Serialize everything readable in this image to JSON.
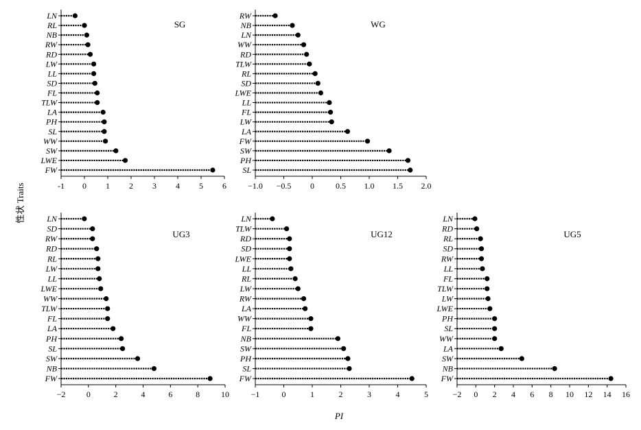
{
  "figure": {
    "ylabel": "性状 Traits",
    "xlabel": "PI"
  },
  "chart_data": [
    {
      "type": "lollipop",
      "title": "SG",
      "xlim": [
        -1,
        6
      ],
      "xticks": [
        -1,
        0,
        1,
        2,
        3,
        4,
        5,
        6
      ],
      "categories": [
        "LN",
        "RL",
        "NB",
        "RW",
        "RD",
        "LW",
        "LL",
        "SD",
        "FL",
        "TLW",
        "LA",
        "PH",
        "SL",
        "WW",
        "SW",
        "LWE",
        "FW"
      ],
      "values": [
        -0.4,
        0.0,
        0.1,
        0.15,
        0.25,
        0.4,
        0.4,
        0.45,
        0.55,
        0.55,
        0.8,
        0.85,
        0.85,
        0.9,
        1.35,
        1.75,
        5.5
      ]
    },
    {
      "type": "lollipop",
      "title": "WG",
      "xlim": [
        -1.0,
        2.0
      ],
      "xticks": [
        -1.0,
        -0.5,
        0,
        0.5,
        1.0,
        1.5,
        2.0
      ],
      "xtick_labels": [
        "−1.0",
        "−0.5",
        "0",
        "0.5",
        "1.0",
        "1.5",
        "2.0"
      ],
      "categories": [
        "RW",
        "NB",
        "LN",
        "WW",
        "RD",
        "TLW",
        "RL",
        "SD",
        "LWE",
        "LL",
        "FL",
        "LW",
        "LA",
        "FW",
        "SW",
        "PH",
        "SL"
      ],
      "values": [
        -0.65,
        -0.35,
        -0.25,
        -0.15,
        -0.1,
        -0.05,
        0.05,
        0.1,
        0.15,
        0.3,
        0.32,
        0.34,
        0.62,
        0.97,
        1.35,
        1.68,
        1.72
      ]
    },
    {
      "type": "lollipop",
      "title": "UG3",
      "xlim": [
        -2,
        10
      ],
      "xticks": [
        -2,
        0,
        2,
        4,
        6,
        8,
        10
      ],
      "xtick_labels": [
        "−2",
        "0",
        "2",
        "4",
        "6",
        "8",
        "10"
      ],
      "categories": [
        "LN",
        "SD",
        "RW",
        "RD",
        "RL",
        "LW",
        "LL",
        "LWE",
        "WW",
        "TLW",
        "FL",
        "LA",
        "PH",
        "SL",
        "SW",
        "NB",
        "FW"
      ],
      "values": [
        -0.3,
        0.3,
        0.3,
        0.6,
        0.7,
        0.7,
        0.8,
        0.9,
        1.3,
        1.4,
        1.4,
        1.8,
        2.4,
        2.5,
        3.6,
        4.8,
        8.9
      ]
    },
    {
      "type": "lollipop",
      "title": "UG12",
      "xlim": [
        -1,
        5
      ],
      "xticks": [
        -1,
        0,
        1,
        2,
        3,
        4,
        5
      ],
      "xtick_labels": [
        "−1",
        "0",
        "1",
        "2",
        "3",
        "4",
        "5"
      ],
      "categories": [
        "LN",
        "TLW",
        "RD",
        "SD",
        "LWE",
        "LL",
        "RL",
        "LW",
        "RW",
        "LA",
        "WW",
        "FL",
        "NB",
        "SW",
        "PH",
        "SL",
        "FW"
      ],
      "values": [
        -0.4,
        0.1,
        0.2,
        0.2,
        0.2,
        0.25,
        0.4,
        0.5,
        0.7,
        0.75,
        0.95,
        0.95,
        1.9,
        2.1,
        2.25,
        2.3,
        4.5
      ]
    },
    {
      "type": "lollipop",
      "title": "UG5",
      "xlim": [
        -2,
        16
      ],
      "xticks": [
        -2,
        0,
        2,
        4,
        6,
        8,
        10,
        12,
        14,
        16
      ],
      "xtick_labels": [
        "−2",
        "0",
        "2",
        "4",
        "6",
        "8",
        "10",
        "12",
        "14",
        "16"
      ],
      "categories": [
        "LN",
        "RD",
        "RL",
        "SD",
        "RW",
        "LL",
        "FL",
        "TLW",
        "LW",
        "LWE",
        "PH",
        "SL",
        "WW",
        "LA",
        "SW",
        "NB",
        "FW"
      ],
      "values": [
        -0.1,
        0.1,
        0.5,
        0.6,
        0.6,
        0.7,
        1.2,
        1.2,
        1.3,
        1.5,
        2.0,
        2.0,
        2.0,
        2.7,
        4.9,
        8.4,
        14.4
      ]
    }
  ]
}
